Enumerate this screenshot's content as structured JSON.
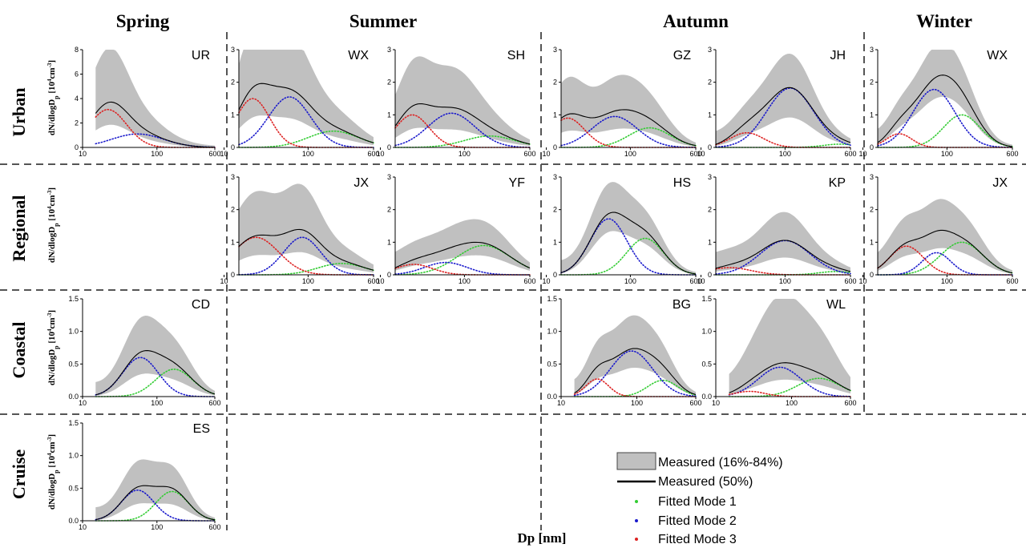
{
  "seasons": [
    "Spring",
    "Summer",
    "Autumn",
    "Winter"
  ],
  "regions": [
    "Urban",
    "Regional",
    "Coastal",
    "Cruise"
  ],
  "y_axis_label": {
    "main": "dN/dlogD",
    "sub": "p",
    "open": " [10",
    "exp": "4",
    "unit": "cm",
    "exp2": "-3",
    "close": "]"
  },
  "x_axis_label": "Dp [nm]",
  "x_ticks": [
    "10",
    "100",
    "600"
  ],
  "colors": {
    "band": "#c0c0c0",
    "median": "#000000",
    "mode1": "#33cc33",
    "mode2": "#1a1acc",
    "mode3": "#dd2222",
    "grid": "#555555"
  },
  "legend": {
    "band": "Measured (16%-84%)",
    "median": "Measured (50%)",
    "mode1": "Fitted Mode 1",
    "mode2": "Fitted Mode 2",
    "mode3": "Fitted Mode 3"
  },
  "chart_data": [
    {
      "type": "area",
      "panel": "urban-spring",
      "site": "UR",
      "x_range": [
        10,
        600
      ],
      "ylim": [
        0,
        8
      ],
      "y_ticks": [
        "0",
        "2",
        "4",
        "6",
        "8"
      ],
      "x_start": 15,
      "mode1": {
        "peak": 0,
        "center": 250,
        "sigma": 0.3
      },
      "mode2": {
        "peak": 1.1,
        "center": 55,
        "sigma": 0.35
      },
      "mode3": {
        "peak": 3.1,
        "center": 22,
        "sigma": 0.25
      },
      "band_lower": 0.5,
      "band_upper": 2.0
    },
    {
      "type": "area",
      "panel": "urban-summer-wx",
      "site": "WX",
      "x_range": [
        15,
        600
      ],
      "ylim": [
        0,
        3
      ],
      "y_ticks": [
        "0",
        "1",
        "2",
        "3"
      ],
      "x_start": 15,
      "mode1": {
        "peak": 0.5,
        "center": 200,
        "sigma": 0.3
      },
      "mode2": {
        "peak": 1.55,
        "center": 60,
        "sigma": 0.25
      },
      "mode3": {
        "peak": 1.5,
        "center": 22,
        "sigma": 0.2
      },
      "band_lower": 0.5,
      "band_upper": 1.9
    },
    {
      "type": "area",
      "panel": "urban-summer-sh",
      "site": "SH",
      "x_range": [
        15,
        600
      ],
      "ylim": [
        0,
        3
      ],
      "y_ticks": [
        "0",
        "1",
        "2",
        "3"
      ],
      "x_start": 15,
      "mode1": {
        "peak": 0.35,
        "center": 200,
        "sigma": 0.3
      },
      "mode2": {
        "peak": 1.05,
        "center": 70,
        "sigma": 0.28
      },
      "mode3": {
        "peak": 1.0,
        "center": 24,
        "sigma": 0.2
      },
      "band_lower": 0.45,
      "band_upper": 1.9
    },
    {
      "type": "area",
      "panel": "urban-autumn-gz",
      "site": "GZ",
      "x_range": [
        15,
        600
      ],
      "ylim": [
        0,
        3
      ],
      "y_ticks": [
        "0",
        "1",
        "2",
        "3"
      ],
      "x_start": 15,
      "mode1": {
        "peak": 0.6,
        "center": 170,
        "sigma": 0.25
      },
      "mode2": {
        "peak": 0.95,
        "center": 65,
        "sigma": 0.27
      },
      "mode3": {
        "peak": 0.9,
        "center": 18,
        "sigma": 0.2
      },
      "band_lower": 0.5,
      "band_upper": 1.8
    },
    {
      "type": "area",
      "panel": "urban-autumn-jh",
      "site": "JH",
      "x_range": [
        15,
        600
      ],
      "ylim": [
        0,
        3
      ],
      "y_ticks": [
        "0",
        "1",
        "2",
        "3"
      ],
      "x_start": 15,
      "mode1": {
        "peak": 0.1,
        "center": 450,
        "sigma": 0.2
      },
      "mode2": {
        "peak": 1.82,
        "center": 115,
        "sigma": 0.28
      },
      "mode3": {
        "peak": 0.45,
        "center": 35,
        "sigma": 0.2
      },
      "band_lower": 0.5,
      "band_upper": 1.5
    },
    {
      "type": "area",
      "panel": "urban-winter-wx",
      "site": "WX",
      "x_range": [
        15,
        600
      ],
      "ylim": [
        0,
        3
      ],
      "y_ticks": [
        "0",
        "1",
        "2",
        "3"
      ],
      "x_start": 15,
      "mode1": {
        "peak": 1.0,
        "center": 150,
        "sigma": 0.22
      },
      "mode2": {
        "peak": 1.78,
        "center": 70,
        "sigma": 0.25
      },
      "mode3": {
        "peak": 0.42,
        "center": 27,
        "sigma": 0.15
      },
      "band_lower": 0.7,
      "band_upper": 1.4
    },
    {
      "type": "area",
      "panel": "regional-summer-jx",
      "site": "JX",
      "x_range": [
        15,
        600
      ],
      "ylim": [
        0,
        3
      ],
      "y_ticks": [
        "0",
        "1",
        "2",
        "3"
      ],
      "x_start": 15,
      "mode1": {
        "peak": 0.35,
        "center": 250,
        "sigma": 0.28
      },
      "mode2": {
        "peak": 1.15,
        "center": 85,
        "sigma": 0.22
      },
      "mode3": {
        "peak": 1.15,
        "center": 24,
        "sigma": 0.27
      },
      "band_lower": 0.5,
      "band_upper": 1.9
    },
    {
      "type": "area",
      "panel": "regional-summer-yf",
      "site": "YF",
      "x_range": [
        15,
        600
      ],
      "ylim": [
        0,
        3
      ],
      "y_ticks": [
        "0",
        "1",
        "2",
        "3"
      ],
      "x_start": 15,
      "mode1": {
        "peak": 0.9,
        "center": 170,
        "sigma": 0.32
      },
      "mode2": {
        "peak": 0.38,
        "center": 60,
        "sigma": 0.25
      },
      "mode3": {
        "peak": 0.32,
        "center": 25,
        "sigma": 0.22
      },
      "band_lower": 0.6,
      "band_upper": 1.6
    },
    {
      "type": "area",
      "panel": "regional-autumn-hs",
      "site": "HS",
      "x_range": [
        15,
        600
      ],
      "ylim": [
        0,
        3
      ],
      "y_ticks": [
        "0",
        "1",
        "2",
        "3"
      ],
      "x_start": 15,
      "mode1": {
        "peak": 1.12,
        "center": 150,
        "sigma": 0.22
      },
      "mode2": {
        "peak": 1.72,
        "center": 55,
        "sigma": 0.22
      },
      "mode3": {
        "peak": 0,
        "center": 20,
        "sigma": 0.2
      },
      "band_lower": 0.7,
      "band_upper": 1.4
    },
    {
      "type": "area",
      "panel": "regional-autumn-kp",
      "site": "KP",
      "x_range": [
        15,
        600
      ],
      "ylim": [
        0,
        3
      ],
      "y_ticks": [
        "0",
        "1",
        "2",
        "3"
      ],
      "x_start": 15,
      "mode1": {
        "peak": 0.1,
        "center": 400,
        "sigma": 0.2
      },
      "mode2": {
        "peak": 1.05,
        "center": 100,
        "sigma": 0.3
      },
      "mode3": {
        "peak": 0.22,
        "center": 22,
        "sigma": 0.25
      },
      "band_lower": 0.5,
      "band_upper": 1.7
    },
    {
      "type": "area",
      "panel": "regional-winter-jx",
      "site": "JX",
      "x_range": [
        15,
        600
      ],
      "ylim": [
        0,
        3
      ],
      "y_ticks": [
        "0",
        "1",
        "2",
        "3"
      ],
      "x_start": 15,
      "mode1": {
        "peak": 1.0,
        "center": 150,
        "sigma": 0.25
      },
      "mode2": {
        "peak": 0.68,
        "center": 75,
        "sigma": 0.17
      },
      "mode3": {
        "peak": 0.88,
        "center": 33,
        "sigma": 0.2
      },
      "band_lower": 0.6,
      "band_upper": 1.6
    },
    {
      "type": "area",
      "panel": "coastal-spring-cd",
      "site": "CD",
      "x_range": [
        10,
        600
      ],
      "ylim": [
        0,
        1.5
      ],
      "y_ticks": [
        "0.0",
        "0.5",
        "1.0",
        "1.5"
      ],
      "x_start": 15,
      "mode1": {
        "peak": 0.42,
        "center": 170,
        "sigma": 0.25
      },
      "mode2": {
        "peak": 0.6,
        "center": 60,
        "sigma": 0.24
      },
      "mode3": {
        "peak": 0,
        "center": 20,
        "sigma": 0.2
      },
      "band_lower": 0.5,
      "band_upper": 1.65
    },
    {
      "type": "area",
      "panel": "coastal-autumn-bg",
      "site": "BG",
      "x_range": [
        10,
        600
      ],
      "ylim": [
        0,
        1.5
      ],
      "y_ticks": [
        "0.0",
        "0.5",
        "1.0",
        "1.5"
      ],
      "x_start": 15,
      "mode1": {
        "peak": 0.25,
        "center": 220,
        "sigma": 0.2
      },
      "mode2": {
        "peak": 0.7,
        "center": 85,
        "sigma": 0.28
      },
      "mode3": {
        "peak": 0.27,
        "center": 30,
        "sigma": 0.15
      },
      "band_lower": 0.6,
      "band_upper": 1.6
    },
    {
      "type": "area",
      "panel": "coastal-autumn-wl",
      "site": "WL",
      "x_range": [
        10,
        600
      ],
      "ylim": [
        0,
        1.5
      ],
      "y_ticks": [
        "0.0",
        "0.5",
        "1.0",
        "1.5"
      ],
      "x_start": 15,
      "mode1": {
        "peak": 0.28,
        "center": 230,
        "sigma": 0.28
      },
      "mode2": {
        "peak": 0.45,
        "center": 70,
        "sigma": 0.28
      },
      "mode3": {
        "peak": 0.08,
        "center": 28,
        "sigma": 0.2
      },
      "band_lower": 0.5,
      "band_upper": 2.9
    },
    {
      "type": "area",
      "panel": "cruise-spring-es",
      "site": "ES",
      "x_range": [
        10,
        600
      ],
      "ylim": [
        0,
        1.5
      ],
      "y_ticks": [
        "0.0",
        "0.5",
        "1.0",
        "1.5"
      ],
      "x_start": 15,
      "mode1": {
        "peak": 0.45,
        "center": 160,
        "sigma": 0.22
      },
      "mode2": {
        "peak": 0.47,
        "center": 55,
        "sigma": 0.22
      },
      "mode3": {
        "peak": 0,
        "center": 20,
        "sigma": 0.2
      },
      "band_lower": 0.5,
      "band_upper": 1.6
    }
  ]
}
